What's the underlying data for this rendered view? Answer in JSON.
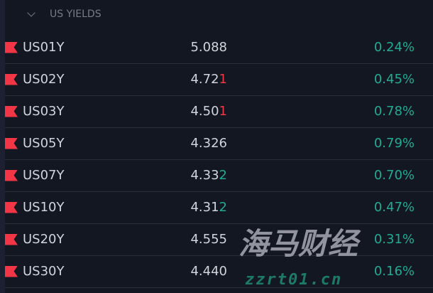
{
  "section": {
    "title": "US YIELDS"
  },
  "rows": [
    {
      "symbol": "US01Y",
      "last_main": "5.088",
      "last_tick": "",
      "tick_dir": "",
      "change": "0.24%"
    },
    {
      "symbol": "US02Y",
      "last_main": "4.72",
      "last_tick": "1",
      "tick_dir": "down",
      "change": "0.45%"
    },
    {
      "symbol": "US03Y",
      "last_main": "4.50",
      "last_tick": "1",
      "tick_dir": "down",
      "change": "0.78%"
    },
    {
      "symbol": "US05Y",
      "last_main": "4.326",
      "last_tick": "",
      "tick_dir": "",
      "change": "0.79%"
    },
    {
      "symbol": "US07Y",
      "last_main": "4.33",
      "last_tick": "2",
      "tick_dir": "up",
      "change": "0.70%"
    },
    {
      "symbol": "US10Y",
      "last_main": "4.31",
      "last_tick": "2",
      "tick_dir": "up",
      "change": "0.47%"
    },
    {
      "symbol": "US20Y",
      "last_main": "4.555",
      "last_tick": "",
      "tick_dir": "",
      "change": "0.31%"
    },
    {
      "symbol": "US30Y",
      "last_main": "4.440",
      "last_tick": "",
      "tick_dir": "",
      "change": "0.16%"
    }
  ],
  "colors": {
    "up": "#22ab94",
    "down": "#f23645",
    "flag": "#f23645"
  },
  "watermark": {
    "text": "海马财经",
    "url": "zzrt01.cn"
  }
}
